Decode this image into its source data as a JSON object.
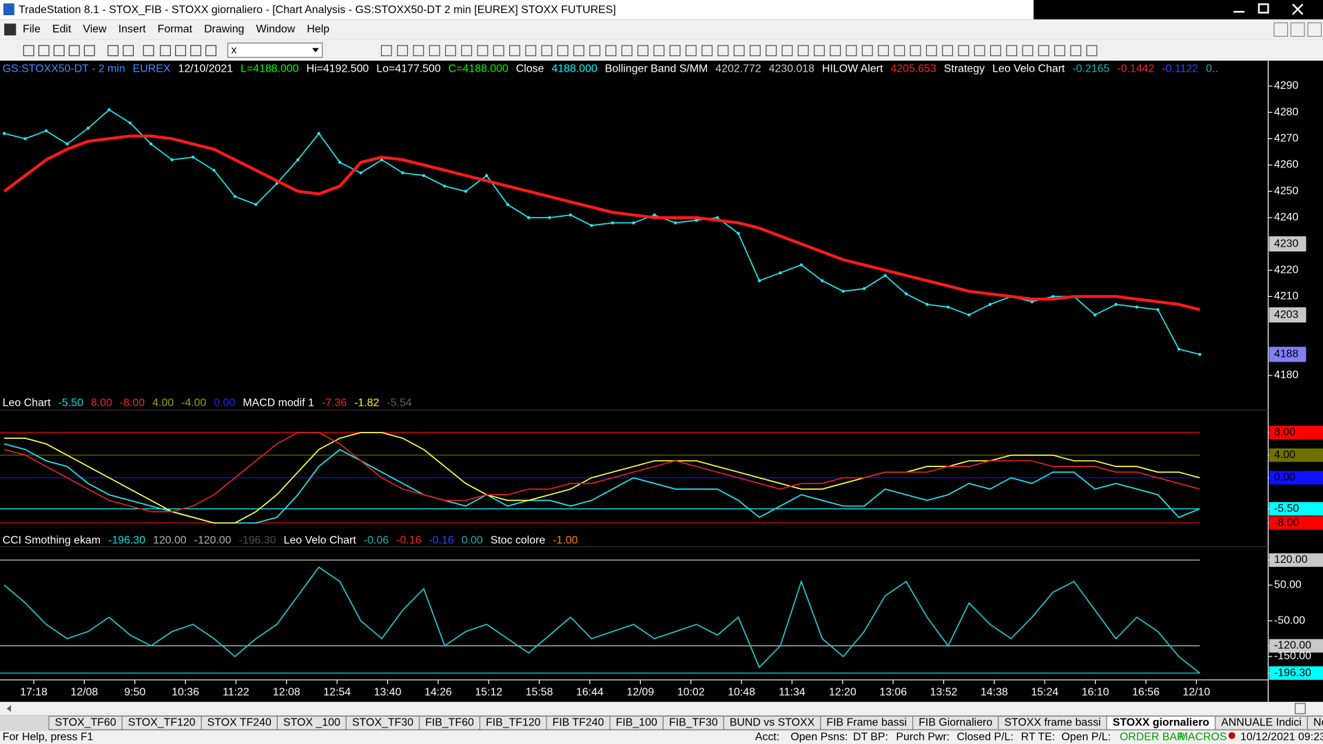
{
  "window": {
    "title": "TradeStation 8.1 - STOX_FIB - STOXX giornaliero - [Chart Analysis - GS:STOXX50-DT  2 min  [EUREX] STOXX FUTURES]"
  },
  "menu": [
    "File",
    "Edit",
    "View",
    "Insert",
    "Format",
    "Drawing",
    "Window",
    "Help"
  ],
  "toolbar": {
    "symbol_box": "x"
  },
  "chart_data": [
    {
      "type": "line",
      "header": [
        {
          "text": "GS:STOXX50-DT - 2 min",
          "color": "#3f8cff"
        },
        {
          "text": "EUREX",
          "color": "#3f8cff"
        },
        {
          "text": "12/10/2021",
          "color": "#ffffff"
        },
        {
          "text": "L=4188.000",
          "color": "#00ff00"
        },
        {
          "text": "Hi=4192.500",
          "color": "#ffffff"
        },
        {
          "text": "Lo=4177.500",
          "color": "#ffffff"
        },
        {
          "text": "C=4188.000",
          "color": "#00ff00"
        },
        {
          "text": "Close",
          "color": "#ffffff"
        },
        {
          "text": "4188.000",
          "color": "#00ffff"
        },
        {
          "text": "Bollinger Band S/MM",
          "color": "#ffffff"
        },
        {
          "text": "4202.772",
          "color": "#d0d0d0"
        },
        {
          "text": "4230.018",
          "color": "#d0d0d0"
        },
        {
          "text": "HILOW Alert",
          "color": "#ffffff"
        },
        {
          "text": "4205.653",
          "color": "#ff2020"
        },
        {
          "text": "Strategy",
          "color": "#ffffff"
        },
        {
          "text": "Leo Velo Chart",
          "color": "#ffffff"
        },
        {
          "text": "-0.2165",
          "color": "#20b0b0"
        },
        {
          "text": "-0.1442",
          "color": "#ff2020"
        },
        {
          "text": "-0.1122",
          "color": "#3040ff"
        },
        {
          "text": "0..",
          "color": "#20b0b0"
        }
      ],
      "series": [
        {
          "color": "#20e8f0",
          "values": [
            4272,
            4270,
            4273,
            4268,
            4274,
            4281,
            4276,
            4268,
            4262,
            4263,
            4258,
            4248,
            4245,
            4253,
            4262,
            4272,
            4261,
            4257,
            4262,
            4257,
            4256,
            4252,
            4250,
            4256,
            4245,
            4240,
            4240,
            4241,
            4237,
            4238,
            4238,
            4241,
            4238,
            4239,
            4240,
            4234,
            4216,
            4219,
            4222,
            4216,
            4212,
            4213,
            4218,
            4211,
            4207,
            4206,
            4203,
            4207,
            4210,
            4208,
            4210,
            4210,
            4203,
            4207,
            4206,
            4205,
            4190,
            4188
          ]
        },
        {
          "color": "#ff1a1a",
          "values": [
            4250,
            4256,
            4262,
            4266,
            4269,
            4270,
            4271,
            4271,
            4270,
            4268,
            4266,
            4262,
            4258,
            4254,
            4250,
            4249,
            4252,
            4261,
            4263,
            4262,
            4260,
            4258,
            4256,
            4254,
            4252,
            4250,
            4248,
            4246,
            4244,
            4242,
            4241,
            4240,
            4240,
            4240,
            4239,
            4238,
            4236,
            4233,
            4230,
            4227,
            4224,
            4222,
            4220,
            4218,
            4216,
            4214,
            4212,
            4211,
            4210,
            4209,
            4209,
            4210,
            4210,
            4210,
            4209,
            4208,
            4207,
            4205
          ]
        }
      ],
      "ylim": [
        4172,
        4299
      ],
      "yticks": [
        4290,
        4280,
        4270,
        4260,
        4250,
        4240,
        4220,
        4210,
        4180
      ],
      "value_boxes": [
        {
          "value": 4230,
          "color": "#c8c8c8"
        },
        {
          "value": 4203,
          "color": "#c8c8c8"
        },
        {
          "value": 4188,
          "color": "#8080ff"
        }
      ]
    },
    {
      "type": "line",
      "header": [
        {
          "text": "Leo Chart",
          "color": "#ffffff"
        },
        {
          "text": "-5.50",
          "color": "#00e0e0"
        },
        {
          "text": "8.00",
          "color": "#ff2020"
        },
        {
          "text": "-8.00",
          "color": "#ff2020"
        },
        {
          "text": "4.00",
          "color": "#a0a000"
        },
        {
          "text": "-4.00",
          "color": "#a0a000"
        },
        {
          "text": "0.00",
          "color": "#2020ff"
        },
        {
          "text": "MACD modif 1",
          "color": "#ffffff"
        },
        {
          "text": "-7.36",
          "color": "#ff2020"
        },
        {
          "text": "-1.82",
          "color": "#ffff00"
        },
        {
          "text": "-5.54",
          "color": "#606060"
        }
      ],
      "series": [
        {
          "color": "#20e8f0",
          "values": [
            6,
            5,
            3,
            2,
            -1,
            -3,
            -4,
            -5,
            -6,
            -7,
            -8,
            -8,
            -8,
            -7,
            -3,
            2,
            5,
            3,
            1,
            -1,
            -3,
            -4,
            -5,
            -3,
            -5,
            -4,
            -4,
            -5,
            -4,
            -2,
            0,
            -1,
            -2,
            -2,
            -2,
            -4,
            -7,
            -5,
            -3,
            -4,
            -5,
            -5,
            -2,
            -3,
            -4,
            -3,
            -1,
            -2,
            0,
            -1,
            1,
            1,
            -2,
            -1,
            -2,
            -3,
            -7,
            -5.5
          ]
        },
        {
          "color": "#ffff40",
          "values": [
            7,
            7,
            6,
            4,
            2,
            0,
            -2,
            -4,
            -6,
            -7,
            -8,
            -8,
            -6,
            -3,
            1,
            5,
            7,
            8,
            8,
            7,
            5,
            2,
            -1,
            -3,
            -4,
            -4,
            -3,
            -2,
            0,
            1,
            2,
            3,
            3,
            3,
            2,
            1,
            0,
            -1,
            -2,
            -2,
            -1,
            0,
            1,
            1,
            2,
            2,
            3,
            3,
            4,
            4,
            4,
            3,
            3,
            2,
            2,
            1,
            1,
            0
          ]
        },
        {
          "color": "#e02020",
          "values": [
            5,
            4,
            2,
            0,
            -2,
            -4,
            -5,
            -6,
            -6,
            -5,
            -3,
            0,
            3,
            6,
            8,
            8,
            6,
            3,
            0,
            -2,
            -3,
            -4,
            -4,
            -3,
            -3,
            -2,
            -2,
            -1,
            -1,
            0,
            1,
            2,
            3,
            2,
            1,
            0,
            -1,
            -2,
            -1,
            -1,
            0,
            0,
            1,
            1,
            1,
            2,
            2,
            3,
            3,
            3,
            2,
            2,
            2,
            1,
            1,
            0,
            -1,
            -2
          ]
        }
      ],
      "ylim": [
        -9.5,
        11.4
      ],
      "yticks": [
        {
          "value": 8,
          "label": "8.00"
        },
        {
          "value": 4,
          "label": "4.00"
        },
        {
          "value": 0,
          "label": "0.00"
        },
        {
          "value": -5.5,
          "label": "-5.50"
        },
        {
          "value": -8,
          "label": "-8.00"
        }
      ],
      "tick_colors": [
        "#ff0000",
        "#707000",
        "#1010ff",
        "#00ffff",
        "#ff0000"
      ]
    },
    {
      "type": "line",
      "header": [
        {
          "text": "CCI Smothing ekam",
          "color": "#ffffff"
        },
        {
          "text": "-196.30",
          "color": "#00e0e0"
        },
        {
          "text": "120.00",
          "color": "#b0b0b0"
        },
        {
          "text": "-120.00",
          "color": "#b0b0b0"
        },
        {
          "text": "-196.30",
          "color": "#505050"
        },
        {
          "text": "Leo Velo Chart",
          "color": "#ffffff"
        },
        {
          "text": "-0.06",
          "color": "#20b0b0"
        },
        {
          "text": "-0.16",
          "color": "#ff2020"
        },
        {
          "text": "-0.16",
          "color": "#3040ff"
        },
        {
          "text": "0.00",
          "color": "#20b0b0"
        },
        {
          "text": "Stoc colore",
          "color": "#ffffff"
        },
        {
          "text": "-1.00",
          "color": "#ff8000"
        }
      ],
      "series": [
        {
          "color": "#20c8d0",
          "values": [
            50,
            0,
            -60,
            -100,
            -80,
            -40,
            -90,
            -120,
            -80,
            -60,
            -100,
            -150,
            -100,
            -60,
            20,
            100,
            60,
            -50,
            -100,
            -20,
            40,
            -120,
            -80,
            -60,
            -100,
            -140,
            -90,
            -40,
            -100,
            -80,
            -60,
            -100,
            -80,
            -60,
            -90,
            -40,
            -180,
            -120,
            60,
            -100,
            -150,
            -80,
            20,
            60,
            -40,
            -120,
            0,
            -60,
            -100,
            -40,
            30,
            60,
            -20,
            -100,
            -40,
            -80,
            -150,
            -196.3
          ]
        }
      ],
      "ylim": [
        -213,
        153
      ],
      "yticks": [
        {
          "value": 120,
          "label": "120.00"
        },
        {
          "value": 50,
          "label": "50.00"
        },
        {
          "value": -50,
          "label": "-50.00"
        },
        {
          "value": -120,
          "label": "-120.00"
        },
        {
          "value": -150,
          "label": "-150.00"
        },
        {
          "value": -196.3,
          "label": "-196.30"
        }
      ],
      "tick_colors": [
        "#c8c8c8",
        null,
        null,
        "#c8c8c8",
        null,
        "#00ffff"
      ]
    }
  ],
  "time_axis": [
    "17:18",
    "12/08",
    "9:50",
    "10:36",
    "11:22",
    "12:08",
    "12:54",
    "13:40",
    "14:26",
    "15:12",
    "15:58",
    "16:44",
    "12/09",
    "10:02",
    "10:48",
    "11:34",
    "12:20",
    "13:06",
    "13:52",
    "14:38",
    "15:24",
    "16:10",
    "16:56",
    "12/10"
  ],
  "tabs": {
    "items": [
      "STOX_TF60",
      "STOX_TF120",
      "STOX TF240",
      "STOX _100",
      "STOX_TF30",
      "FIB_TF60",
      "FIB_TF120",
      "FIB TF240",
      "FIB_100",
      "FIB_TF30",
      "BUND vs STOXX",
      "FIB Frame bassi",
      "FIB Giornaliero",
      "STOXX frame bassi",
      "STOXX giornaliero",
      "ANNUALE Indici",
      "No PREZZI"
    ],
    "active": 14
  },
  "status": {
    "help": "For Help, press F1",
    "fields": [
      "Acct:",
      "Open Psns:",
      "DT BP:",
      "Purch Pwr:",
      "Closed P/L:",
      "RT TE:",
      "Open P/L:"
    ],
    "order_bar": "ORDER BAR",
    "macros": "MACROS",
    "datetime": "10/12/2021 09:23"
  }
}
